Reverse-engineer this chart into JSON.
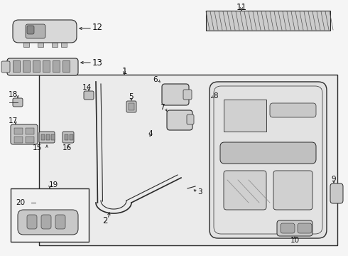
{
  "bg_color": "#f5f5f5",
  "fig_width": 4.9,
  "fig_height": 3.6,
  "dpi": 100,
  "line_color": "#2a2a2a",
  "label_fontsize": 8.5,
  "leader_fontsize": 7.5
}
